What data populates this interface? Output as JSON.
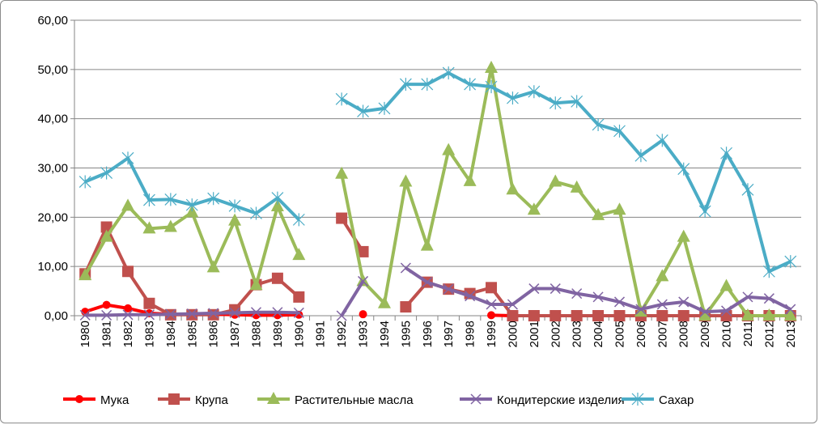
{
  "chart_data": {
    "type": "line",
    "title": "",
    "xlabel": "",
    "ylabel": "",
    "ylim": [
      0,
      60
    ],
    "yticks": [
      "0,00",
      "10,00",
      "20,00",
      "30,00",
      "40,00",
      "50,00",
      "60,00"
    ],
    "grid": true,
    "legend_position": "bottom",
    "categories": [
      "1980",
      "1981",
      "1982",
      "1983",
      "1984",
      "1985",
      "1986",
      "1987",
      "1988",
      "1989",
      "1990",
      "1991",
      "1992",
      "1993",
      "1994",
      "1995",
      "1996",
      "1997",
      "1998",
      "1999",
      "2000",
      "2001",
      "2002",
      "2003",
      "2004",
      "2005",
      "2006",
      "2007",
      "2008",
      "2009",
      "2010",
      "2011",
      "2012",
      "2013"
    ],
    "series": [
      {
        "name": "Мука",
        "color": "#ff0000",
        "marker": "circle",
        "values": [
          0.8,
          2.2,
          1.5,
          0.5,
          0.3,
          0.3,
          0.3,
          0.2,
          0.1,
          0.1,
          0.2,
          null,
          null,
          0.3,
          null,
          null,
          null,
          null,
          null,
          0.1,
          0,
          0,
          0,
          0,
          0,
          0,
          0,
          0,
          0,
          0,
          0,
          0,
          0,
          0
        ]
      },
      {
        "name": "Крупа",
        "color": "#c0504d",
        "marker": "square",
        "values": [
          8.5,
          18,
          9,
          2.5,
          0.2,
          0.2,
          0.2,
          1.2,
          6.3,
          7.6,
          3.8,
          null,
          19.8,
          13,
          null,
          1.8,
          6.8,
          5.4,
          4.5,
          5.7,
          0,
          0,
          0,
          0,
          0,
          0,
          0,
          0,
          0,
          0,
          0,
          0,
          0,
          0
        ]
      },
      {
        "name": "Растительные масла",
        "color": "#9bbb59",
        "marker": "triangle",
        "values": [
          8.2,
          16,
          22.3,
          17.7,
          18,
          21,
          9.8,
          19.3,
          6.2,
          22.2,
          12.3,
          null,
          28.8,
          7,
          2.5,
          27.2,
          14.2,
          33.6,
          27.3,
          50.3,
          25.6,
          21.5,
          27.2,
          26,
          20.4,
          21.5,
          0.8,
          8,
          16,
          0,
          6,
          0,
          0,
          0
        ]
      },
      {
        "name": "Кондитерские изделия",
        "color": "#8064a2",
        "marker": "x",
        "values": [
          0.1,
          0.1,
          0.2,
          0.2,
          0.3,
          0.4,
          0.5,
          0.6,
          0.7,
          0.7,
          0.6,
          null,
          0,
          7,
          null,
          9.7,
          6.8,
          5.4,
          4,
          2.3,
          2.3,
          5.5,
          5.5,
          4.5,
          3.8,
          2.8,
          1.3,
          2.3,
          2.8,
          0.8,
          1,
          3.8,
          3.5,
          1.3
        ]
      },
      {
        "name": "Сахар",
        "color": "#4bacc6",
        "marker": "star",
        "values": [
          27.2,
          29,
          32,
          23.5,
          23.6,
          22.5,
          23.8,
          22.3,
          20.8,
          23.9,
          19.5,
          null,
          44,
          41.5,
          42.1,
          47,
          47,
          49.3,
          47,
          46.5,
          44.2,
          45.5,
          43.2,
          43.5,
          38.8,
          37.5,
          32.5,
          35.6,
          29.8,
          21.2,
          33,
          25.6,
          9,
          11
        ]
      }
    ]
  }
}
